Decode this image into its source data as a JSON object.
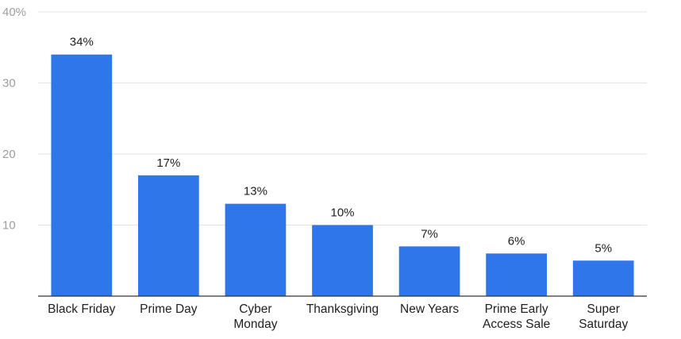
{
  "chart_data": {
    "type": "bar",
    "title": "",
    "xlabel": "",
    "ylabel": "",
    "categories": [
      [
        "Black Friday"
      ],
      [
        "Prime Day"
      ],
      [
        "Cyber",
        "Monday"
      ],
      [
        "Thanksgiving"
      ],
      [
        "New Years"
      ],
      [
        "Prime Early",
        "Access Sale"
      ],
      [
        "Super",
        "Saturday"
      ]
    ],
    "values": [
      34,
      17,
      13,
      10,
      7,
      6,
      5
    ],
    "data_labels": [
      "34%",
      "17%",
      "13%",
      "10%",
      "7%",
      "6%",
      "5%"
    ],
    "ylim": [
      0,
      40
    ],
    "yticks": [
      {
        "value": 10,
        "label": "10"
      },
      {
        "value": 20,
        "label": "20"
      },
      {
        "value": 30,
        "label": "30"
      },
      {
        "value": 40,
        "label": "40%"
      }
    ],
    "grid": true,
    "legend": "none",
    "bar_color": "#2f76ea",
    "grid_color": "#e3e3e3",
    "axis_color": "#333333"
  }
}
